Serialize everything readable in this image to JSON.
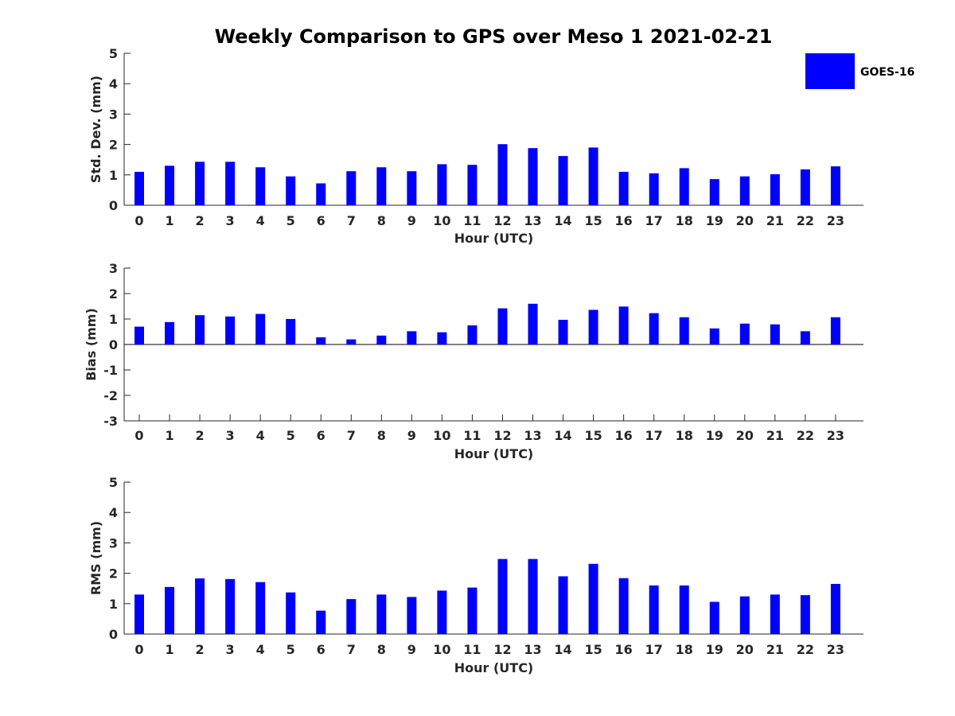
{
  "title": "Weekly Comparison to GPS over Meso 1 2021-02-21",
  "legend": {
    "label": "GOES-16",
    "color": "#0000ff"
  },
  "chart_data": [
    {
      "type": "bar",
      "title": "Weekly Comparison to GPS over Meso 1 2021-02-21",
      "xlabel": "Hour (UTC)",
      "ylabel": "Std. Dev. (mm)",
      "ylim": [
        0,
        5
      ],
      "yticks": [
        0,
        1,
        2,
        3,
        4,
        5
      ],
      "categories": [
        "0",
        "1",
        "2",
        "3",
        "4",
        "5",
        "6",
        "7",
        "8",
        "9",
        "10",
        "11",
        "12",
        "13",
        "14",
        "15",
        "16",
        "17",
        "18",
        "19",
        "20",
        "21",
        "22",
        "23"
      ],
      "series": [
        {
          "name": "GOES-16",
          "color": "#0000ff",
          "values": [
            1.1,
            1.3,
            1.43,
            1.43,
            1.25,
            0.95,
            0.72,
            1.12,
            1.25,
            1.12,
            1.35,
            1.33,
            2.01,
            1.88,
            1.62,
            1.9,
            1.1,
            1.05,
            1.22,
            0.86,
            0.95,
            1.02,
            1.18,
            1.28
          ]
        }
      ]
    },
    {
      "type": "bar",
      "xlabel": "Hour (UTC)",
      "ylabel": "Bias (mm)",
      "ylim": [
        -3,
        3
      ],
      "yticks": [
        -3,
        -2,
        -1,
        0,
        1,
        2,
        3
      ],
      "categories": [
        "0",
        "1",
        "2",
        "3",
        "4",
        "5",
        "6",
        "7",
        "8",
        "9",
        "10",
        "11",
        "12",
        "13",
        "14",
        "15",
        "16",
        "17",
        "18",
        "19",
        "20",
        "21",
        "22",
        "23"
      ],
      "series": [
        {
          "name": "GOES-16",
          "color": "#0000ff",
          "values": [
            0.7,
            0.88,
            1.15,
            1.1,
            1.2,
            1.0,
            0.28,
            0.2,
            0.35,
            0.52,
            0.48,
            0.75,
            1.42,
            1.6,
            0.97,
            1.36,
            1.49,
            1.23,
            1.07,
            0.63,
            0.82,
            0.79,
            0.52,
            1.07
          ]
        }
      ]
    },
    {
      "type": "bar",
      "xlabel": "Hour (UTC)",
      "ylabel": "RMS (mm)",
      "ylim": [
        0,
        5
      ],
      "yticks": [
        0,
        1,
        2,
        3,
        4,
        5
      ],
      "categories": [
        "0",
        "1",
        "2",
        "3",
        "4",
        "5",
        "6",
        "7",
        "8",
        "9",
        "10",
        "11",
        "12",
        "13",
        "14",
        "15",
        "16",
        "17",
        "18",
        "19",
        "20",
        "21",
        "22",
        "23"
      ],
      "series": [
        {
          "name": "GOES-16",
          "color": "#0000ff",
          "values": [
            1.3,
            1.55,
            1.83,
            1.81,
            1.71,
            1.37,
            0.77,
            1.15,
            1.3,
            1.22,
            1.43,
            1.53,
            2.47,
            2.47,
            1.9,
            2.31,
            1.84,
            1.6,
            1.6,
            1.06,
            1.24,
            1.3,
            1.28,
            1.65
          ]
        }
      ]
    }
  ]
}
